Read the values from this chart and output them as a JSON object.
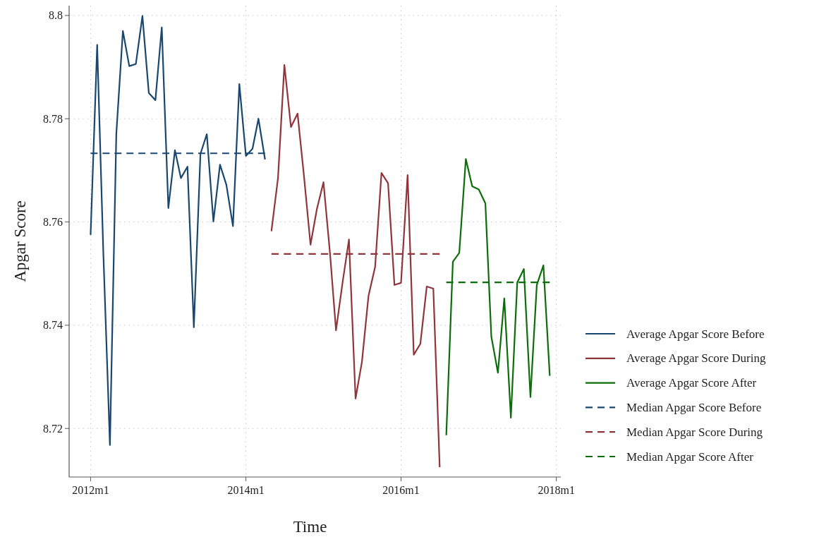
{
  "chart_data": {
    "type": "line",
    "xlabel": "Time",
    "ylabel": "Apgar Score",
    "xlim": [
      "2011-09-22",
      "2018-01-22"
    ],
    "ylim": [
      8.7106,
      8.8019
    ],
    "xticks": [
      {
        "value": "2012-01",
        "label": "2012m1"
      },
      {
        "value": "2014-01",
        "label": "2014m1"
      },
      {
        "value": "2016-01",
        "label": "2016m1"
      },
      {
        "value": "2018-01",
        "label": "2018m1"
      }
    ],
    "yticks": [
      8.72,
      8.74,
      8.76,
      8.78,
      8.8
    ],
    "grid": true,
    "legend": "right",
    "series": [
      {
        "name": "Average Apgar Score Before",
        "color": "#1a476f",
        "line_style": "solid",
        "x": [
          "2012-01",
          "2012-02",
          "2012-03",
          "2012-04",
          "2012-05",
          "2012-06",
          "2012-07",
          "2012-08",
          "2012-09",
          "2012-10",
          "2012-11",
          "2012-12",
          "2013-01",
          "2013-02",
          "2013-03",
          "2013-04",
          "2013-05",
          "2013-06",
          "2013-07",
          "2013-08",
          "2013-09",
          "2013-10",
          "2013-11",
          "2013-12",
          "2014-01",
          "2014-02",
          "2014-03",
          "2014-04"
        ],
        "values": [
          8.7575,
          8.7943,
          8.754,
          8.7168,
          8.777,
          8.797,
          8.7902,
          8.7906,
          8.7999,
          8.785,
          8.7836,
          8.7977,
          8.7627,
          8.7739,
          8.7685,
          8.7707,
          8.7396,
          8.7732,
          8.777,
          8.7601,
          8.7711,
          8.7672,
          8.7592,
          8.7867,
          8.7728,
          8.7742,
          8.78,
          8.7721
        ]
      },
      {
        "name": "Average Apgar Score During",
        "color": "#90353b",
        "line_style": "solid",
        "x": [
          "2014-05",
          "2014-06",
          "2014-07",
          "2014-08",
          "2014-09",
          "2014-10",
          "2014-11",
          "2014-12",
          "2015-01",
          "2015-02",
          "2015-03",
          "2015-04",
          "2015-05",
          "2015-06",
          "2015-07",
          "2015-08",
          "2015-09",
          "2015-10",
          "2015-11",
          "2015-12",
          "2016-01",
          "2016-02",
          "2016-03",
          "2016-04",
          "2016-05",
          "2016-06",
          "2016-07"
        ],
        "values": [
          8.7582,
          8.7685,
          8.7904,
          8.7784,
          8.781,
          8.769,
          8.7556,
          8.7625,
          8.7677,
          8.7538,
          8.739,
          8.7483,
          8.7566,
          8.7258,
          8.7329,
          8.7457,
          8.7513,
          8.7695,
          8.7675,
          8.7478,
          8.7482,
          8.7691,
          8.7343,
          8.7364,
          8.7475,
          8.7471,
          8.7125
        ]
      },
      {
        "name": "Average Apgar Score After",
        "color": "#0b6e0b",
        "line_style": "solid",
        "x": [
          "2016-08",
          "2016-09",
          "2016-10",
          "2016-11",
          "2016-12",
          "2017-01",
          "2017-02",
          "2017-03",
          "2017-04",
          "2017-05",
          "2017-06",
          "2017-07",
          "2017-08",
          "2017-09",
          "2017-10",
          "2017-11",
          "2017-12"
        ],
        "values": [
          8.7187,
          8.7523,
          8.754,
          8.7722,
          8.7669,
          8.7663,
          8.7636,
          8.7378,
          8.7308,
          8.7452,
          8.7221,
          8.7483,
          8.7509,
          8.7261,
          8.7478,
          8.7516,
          8.7302
        ]
      },
      {
        "name": "Median Apgar Score Before",
        "color": "#1a476f",
        "line_style": "dashed",
        "x": [
          "2012-01",
          "2014-04"
        ],
        "values": [
          8.7733,
          8.7733
        ]
      },
      {
        "name": "Median Apgar Score During",
        "color": "#90353b",
        "line_style": "dashed",
        "x": [
          "2014-05",
          "2016-07"
        ],
        "values": [
          8.7538,
          8.7538
        ]
      },
      {
        "name": "Median Apgar Score After",
        "color": "#0b6e0b",
        "line_style": "dashed",
        "x": [
          "2016-08",
          "2017-12"
        ],
        "values": [
          8.7483,
          8.7483
        ]
      }
    ]
  }
}
